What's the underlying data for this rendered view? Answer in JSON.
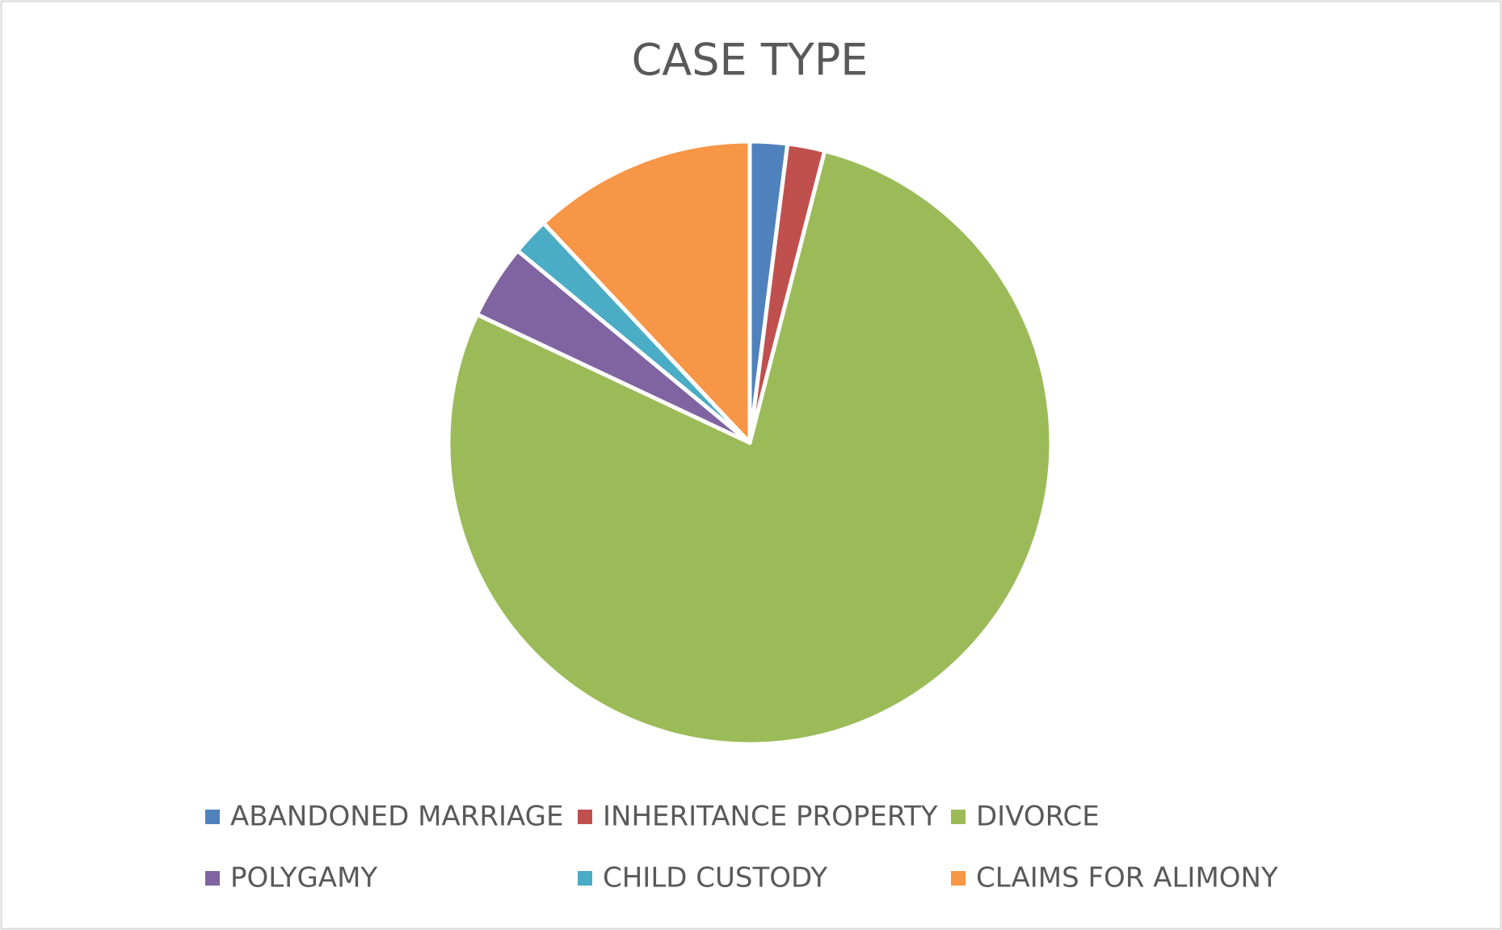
{
  "chart_data": {
    "type": "pie",
    "title": "CASE TYPE",
    "categories": [
      "ABANDONED MARRIAGE",
      "INHERITANCE PROPERTY",
      "DIVORCE",
      "POLYGAMY",
      "CHILD CUSTODY",
      "CLAIMS FOR ALIMONY"
    ],
    "values": [
      2,
      2,
      78,
      4,
      2,
      12
    ],
    "colors": [
      "#4f81bd",
      "#c0504d",
      "#9bbb59",
      "#8064a2",
      "#4bacc6",
      "#f79646"
    ],
    "legend": "bottom"
  }
}
